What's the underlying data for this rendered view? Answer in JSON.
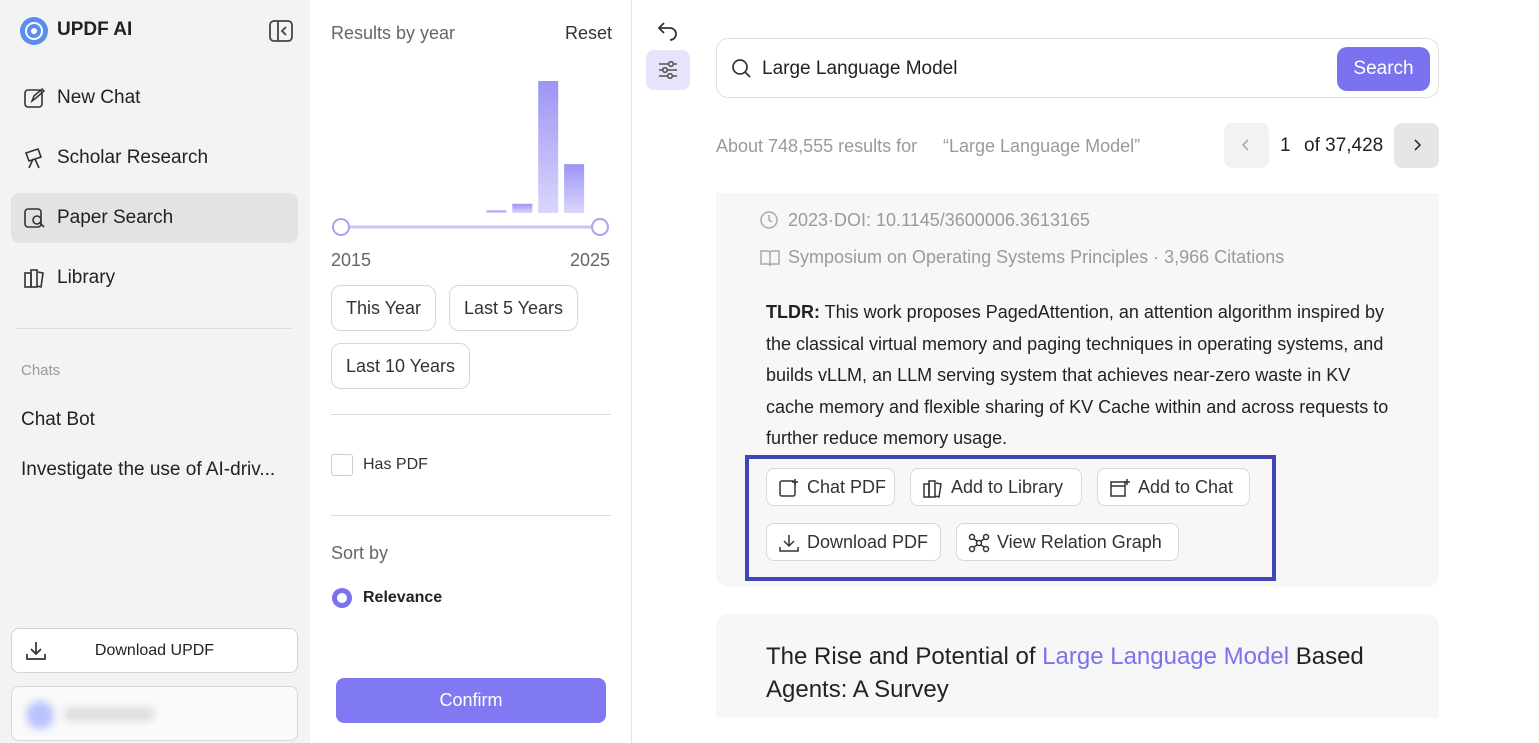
{
  "sidebar": {
    "brand": "UPDF AI",
    "nav": [
      "New Chat",
      "Scholar Research",
      "Paper Search",
      "Library"
    ],
    "chats_heading": "Chats",
    "chats": [
      "Chat Bot",
      "Investigate the use of AI-driv..."
    ],
    "download": "Download UPDF"
  },
  "filter": {
    "title": "Results by year",
    "reset": "Reset",
    "histogram": {
      "years": [
        2021,
        2022,
        2023,
        2024
      ],
      "counts": [
        2,
        7,
        100,
        37
      ]
    },
    "range": [
      2015,
      2025
    ],
    "presets": [
      "This Year",
      "Last 5 Years",
      "Last 10 Years"
    ],
    "has_pdf": "Has PDF",
    "sort_heading": "Sort by",
    "sort_option": "Relevance",
    "confirm": "Confirm"
  },
  "search": {
    "query": "Large Language Model",
    "button": "Search"
  },
  "results_summary": {
    "prefix": "About 748,555 results for",
    "query": "“Large Language Model”",
    "page": 1,
    "of": "of 37,428"
  },
  "results": [
    {
      "date_doi": "2023·DOI: 10.1145/3600006.3613165",
      "venue": "Symposium on Operating Systems Principles · 3,966 Citations",
      "tldr_label": "TLDR:",
      "tldr": "This work proposes PagedAttention, an attention algorithm inspired by the classical virtual memory and paging techniques in operating systems, and builds vLLM, an LLM serving system that achieves near-zero waste in KV cache memory and flexible sharing of KV Cache within and across requests to further reduce memory usage.",
      "actions": [
        "Chat PDF",
        "Add to Library",
        "Add to Chat",
        "Download PDF",
        "View Relation Graph"
      ]
    },
    {
      "title_parts": [
        "The Rise and Potential of ",
        "Large Language Model",
        " Based Agents: A Survey"
      ]
    }
  ]
}
